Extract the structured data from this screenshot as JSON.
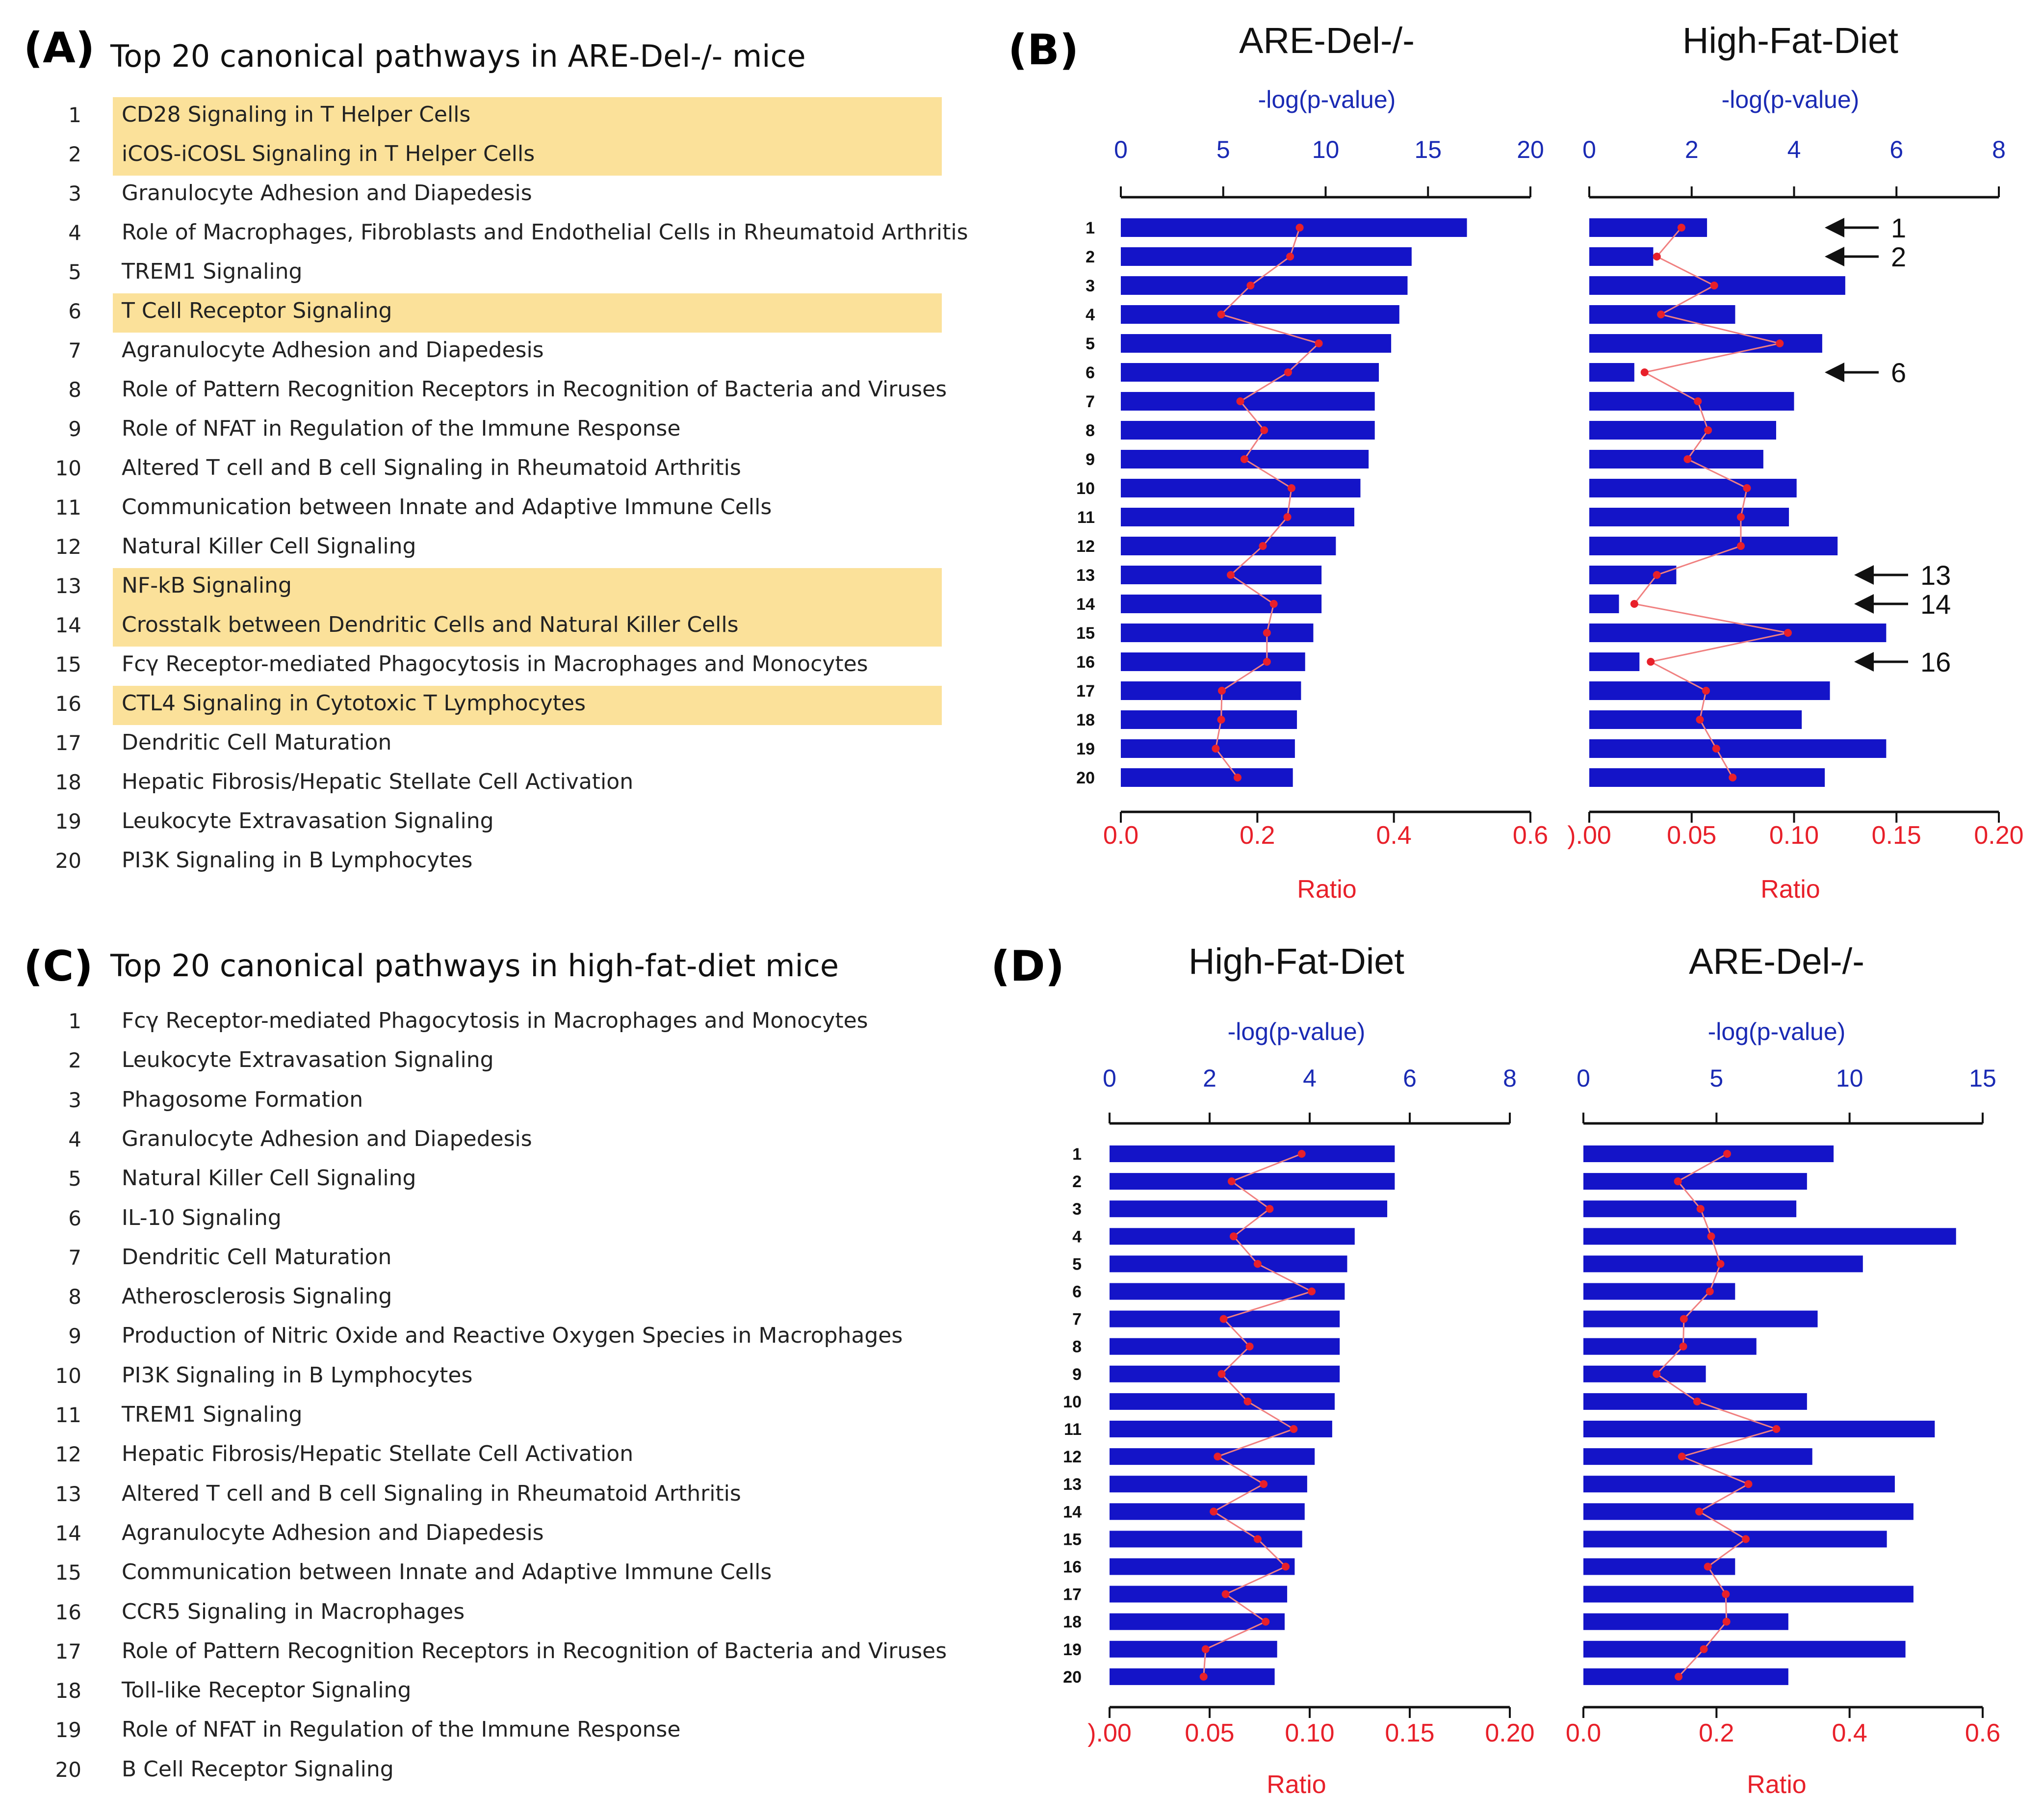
{
  "panel_A": {
    "letter": "(A)",
    "title": "Top 20 canonical pathways in ARE-Del-/- mice",
    "items": [
      {
        "n": "1",
        "label": "CD28 Signaling in T Helper Cells",
        "highlighted": true
      },
      {
        "n": "2",
        "label": "iCOS-iCOSL Signaling in T Helper Cells",
        "highlighted": true
      },
      {
        "n": "3",
        "label": "Granulocyte Adhesion and Diapedesis",
        "highlighted": false
      },
      {
        "n": "4",
        "label": "Role of Macrophages, Fibroblasts and Endothelial Cells in Rheumatoid Arthritis",
        "highlighted": false
      },
      {
        "n": "5",
        "label": "TREM1 Signaling",
        "highlighted": false
      },
      {
        "n": "6",
        "label": "T Cell Receptor Signaling",
        "highlighted": true
      },
      {
        "n": "7",
        "label": "Agranulocyte Adhesion and Diapedesis",
        "highlighted": false
      },
      {
        "n": "8",
        "label": "Role of Pattern Recognition Receptors in Recognition of Bacteria and Viruses",
        "highlighted": false
      },
      {
        "n": "9",
        "label": "Role of NFAT in Regulation of the Immune Response",
        "highlighted": false
      },
      {
        "n": "10",
        "label": "Altered T cell and B cell Signaling in Rheumatoid Arthritis",
        "highlighted": false
      },
      {
        "n": "11",
        "label": "Communication between Innate and Adaptive Immune Cells",
        "highlighted": false
      },
      {
        "n": "12",
        "label": "Natural Killer Cell Signaling",
        "highlighted": false
      },
      {
        "n": "13",
        "label": "NF-kB Signaling",
        "highlighted": true
      },
      {
        "n": "14",
        "label": "Crosstalk between Dendritic Cells and Natural Killer Cells",
        "highlighted": true
      },
      {
        "n": "15",
        "label": "Fcγ Receptor-mediated Phagocytosis in Macrophages and Monocytes",
        "highlighted": false
      },
      {
        "n": "16",
        "label": "CTL4 Signaling in Cytotoxic T Lymphocytes",
        "highlighted": true
      },
      {
        "n": "17",
        "label": "Dendritic Cell Maturation",
        "highlighted": false
      },
      {
        "n": "18",
        "label": "Hepatic Fibrosis/Hepatic Stellate Cell Activation",
        "highlighted": false
      },
      {
        "n": "19",
        "label": "Leukocyte Extravasation Signaling",
        "highlighted": false
      },
      {
        "n": "20",
        "label": "PI3K Signaling in B Lymphocytes",
        "highlighted": false
      }
    ]
  },
  "panel_C": {
    "letter": "(C)",
    "title": "Top 20 canonical pathways in high-fat-diet mice",
    "items": [
      {
        "n": "1",
        "label": "Fcγ Receptor-mediated Phagocytosis in Macrophages and Monocytes"
      },
      {
        "n": "2",
        "label": "Leukocyte Extravasation Signaling"
      },
      {
        "n": "3",
        "label": "Phagosome Formation"
      },
      {
        "n": "4",
        "label": "Granulocyte Adhesion and Diapedesis"
      },
      {
        "n": "5",
        "label": "Natural Killer Cell Signaling"
      },
      {
        "n": "6",
        "label": "IL-10 Signaling"
      },
      {
        "n": "7",
        "label": "Dendritic Cell Maturation"
      },
      {
        "n": "8",
        "label": "Atherosclerosis Signaling"
      },
      {
        "n": "9",
        "label": "Production of Nitric Oxide and Reactive Oxygen Species in Macrophages"
      },
      {
        "n": "10",
        "label": "PI3K Signaling in B Lymphocytes"
      },
      {
        "n": "11",
        "label": "TREM1 Signaling"
      },
      {
        "n": "12",
        "label": "Hepatic Fibrosis/Hepatic Stellate Cell Activation"
      },
      {
        "n": "13",
        "label": "Altered T cell and B cell Signaling in Rheumatoid Arthritis"
      },
      {
        "n": "14",
        "label": "Agranulocyte Adhesion and Diapedesis"
      },
      {
        "n": "15",
        "label": "Communication between Innate and Adaptive Immune Cells"
      },
      {
        "n": "16",
        "label": "CCR5 Signaling in Macrophages"
      },
      {
        "n": "17",
        "label": "Role of Pattern Recognition Receptors in Recognition of Bacteria and Viruses"
      },
      {
        "n": "18",
        "label": "Toll-like Receptor Signaling"
      },
      {
        "n": "19",
        "label": "Role of NFAT in Regulation of the Immune Response"
      },
      {
        "n": "20",
        "label": "B Cell Receptor Signaling"
      }
    ]
  },
  "panel_B_letter": "(B)",
  "panel_D_letter": "(D)",
  "colors": {
    "bar": "#1414c8",
    "ratio": "#e8202a",
    "ratio_line": "#f08080",
    "top_axis_text": "#1a2ab4",
    "highlight": "#fbe19a"
  },
  "chart_data": [
    {
      "id": "B_left",
      "type": "bar",
      "orientation": "horizontal",
      "title": "ARE-Del-/-",
      "categories": [
        "1",
        "2",
        "3",
        "4",
        "5",
        "6",
        "7",
        "8",
        "9",
        "10",
        "11",
        "12",
        "13",
        "14",
        "15",
        "16",
        "17",
        "18",
        "19",
        "20"
      ],
      "top_axis": {
        "label": "-log(p-value)",
        "range": [
          0,
          20
        ],
        "ticks": [
          "0",
          "5",
          "10",
          "15",
          "20"
        ]
      },
      "bottom_axis": {
        "label": "Ratio",
        "range": [
          0,
          0.6
        ],
        "ticks": [
          "0.0",
          "0.2",
          "0.4",
          "0.6"
        ]
      },
      "series": [
        {
          "name": "-log(p-value)",
          "kind": "bar",
          "axis": "top",
          "values": [
            16.9,
            14.2,
            14.0,
            13.6,
            13.2,
            12.6,
            12.4,
            12.4,
            12.1,
            11.7,
            11.4,
            10.5,
            9.8,
            9.8,
            9.4,
            9.0,
            8.8,
            8.6,
            8.5,
            8.4
          ]
        },
        {
          "name": "Ratio",
          "kind": "line",
          "axis": "bottom",
          "values": [
            0.262,
            0.248,
            0.19,
            0.147,
            0.29,
            0.245,
            0.175,
            0.21,
            0.181,
            0.25,
            0.244,
            0.208,
            0.161,
            0.224,
            0.214,
            0.214,
            0.148,
            0.147,
            0.139,
            0.171
          ]
        }
      ],
      "annotations": []
    },
    {
      "id": "B_right",
      "type": "bar",
      "orientation": "horizontal",
      "title": "High-Fat-Diet",
      "categories": [
        "1",
        "2",
        "3",
        "4",
        "5",
        "6",
        "7",
        "8",
        "9",
        "10",
        "11",
        "12",
        "13",
        "14",
        "15",
        "16",
        "17",
        "18",
        "19",
        "20"
      ],
      "top_axis": {
        "label": "-log(p-value)",
        "range": [
          0,
          8
        ],
        "ticks": [
          "0",
          "2",
          "4",
          "6",
          "8"
        ]
      },
      "bottom_axis": {
        "label": "Ratio",
        "range": [
          0,
          0.2
        ],
        "ticks": [
          ").00",
          "0.05",
          "0.10",
          "0.15",
          "0.20"
        ]
      },
      "series": [
        {
          "name": "-log(p-value)",
          "kind": "bar",
          "axis": "top",
          "values": [
            2.3,
            1.25,
            5.0,
            2.85,
            4.55,
            0.88,
            4.0,
            3.65,
            3.4,
            4.05,
            3.9,
            4.85,
            1.7,
            0.58,
            5.8,
            0.98,
            4.7,
            4.15,
            5.8,
            4.6
          ]
        },
        {
          "name": "Ratio",
          "kind": "line",
          "axis": "bottom",
          "values": [
            0.045,
            0.033,
            0.061,
            0.035,
            0.093,
            0.027,
            0.053,
            0.058,
            0.048,
            0.077,
            0.074,
            0.074,
            0.033,
            0.022,
            0.097,
            0.03,
            0.057,
            0.054,
            0.062,
            0.07
          ]
        }
      ],
      "annotations": [
        {
          "row": "1",
          "text": "1"
        },
        {
          "row": "2",
          "text": "2"
        },
        {
          "row": "6",
          "text": "6"
        },
        {
          "row": "13",
          "text": "13"
        },
        {
          "row": "14",
          "text": "14"
        },
        {
          "row": "16",
          "text": "16"
        }
      ]
    },
    {
      "id": "D_left",
      "type": "bar",
      "orientation": "horizontal",
      "title": "High-Fat-Diet",
      "categories": [
        "1",
        "2",
        "3",
        "4",
        "5",
        "6",
        "7",
        "8",
        "9",
        "10",
        "11",
        "12",
        "13",
        "14",
        "15",
        "16",
        "17",
        "18",
        "19",
        "20"
      ],
      "top_axis": {
        "label": "-log(p-value)",
        "range": [
          0,
          8
        ],
        "ticks": [
          "0",
          "2",
          "4",
          "6",
          "8"
        ]
      },
      "bottom_axis": {
        "label": "Ratio",
        "range": [
          0,
          0.2
        ],
        "ticks": [
          ").00",
          "0.05",
          "0.10",
          "0.15",
          "0.20"
        ]
      },
      "series": [
        {
          "name": "-log(p-value)",
          "kind": "bar",
          "axis": "top",
          "values": [
            5.7,
            5.7,
            5.55,
            4.9,
            4.75,
            4.7,
            4.6,
            4.6,
            4.6,
            4.5,
            4.45,
            4.1,
            3.95,
            3.9,
            3.85,
            3.7,
            3.55,
            3.5,
            3.35,
            3.3
          ]
        },
        {
          "name": "Ratio",
          "kind": "line",
          "axis": "bottom",
          "values": [
            0.096,
            0.061,
            0.08,
            0.062,
            0.074,
            0.101,
            0.057,
            0.07,
            0.056,
            0.069,
            0.092,
            0.054,
            0.077,
            0.052,
            0.074,
            0.088,
            0.058,
            0.078,
            0.048,
            0.047
          ]
        }
      ],
      "annotations": []
    },
    {
      "id": "D_right",
      "type": "bar",
      "orientation": "horizontal",
      "title": "ARE-Del-/-",
      "categories": [
        "1",
        "2",
        "3",
        "4",
        "5",
        "6",
        "7",
        "8",
        "9",
        "10",
        "11",
        "12",
        "13",
        "14",
        "15",
        "16",
        "17",
        "18",
        "19",
        "20"
      ],
      "top_axis": {
        "label": "-log(p-value)",
        "range": [
          0,
          15
        ],
        "ticks": [
          "0",
          "5",
          "10",
          "15"
        ]
      },
      "bottom_axis": {
        "label": "Ratio",
        "range": [
          0,
          0.6
        ],
        "ticks": [
          "0.0",
          "0.2",
          "0.4",
          "0.6"
        ]
      },
      "series": [
        {
          "name": "-log(p-value)",
          "kind": "bar",
          "axis": "top",
          "values": [
            9.4,
            8.4,
            8.0,
            14.0,
            10.5,
            5.7,
            8.8,
            6.5,
            4.6,
            8.4,
            13.2,
            8.6,
            11.7,
            12.4,
            11.4,
            5.7,
            12.4,
            7.7,
            12.1,
            7.7
          ]
        },
        {
          "name": "Ratio",
          "kind": "line",
          "axis": "bottom",
          "values": [
            0.216,
            0.142,
            0.176,
            0.192,
            0.206,
            0.19,
            0.151,
            0.15,
            0.11,
            0.171,
            0.29,
            0.148,
            0.248,
            0.174,
            0.244,
            0.187,
            0.214,
            0.215,
            0.181,
            0.143
          ]
        }
      ],
      "annotations": []
    }
  ]
}
